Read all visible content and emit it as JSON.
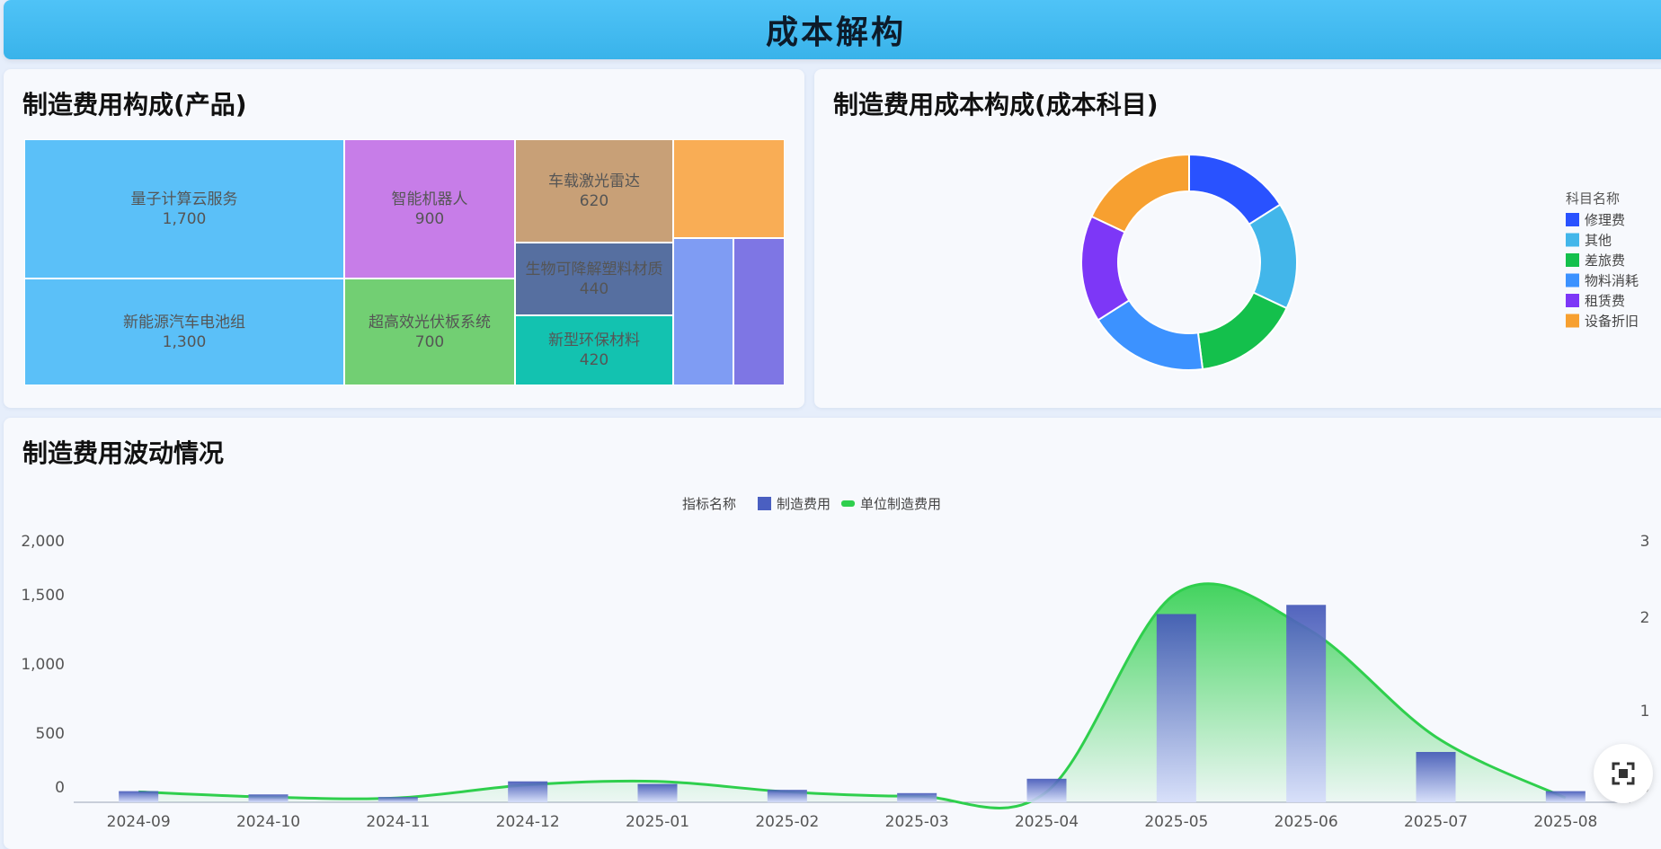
{
  "header": {
    "title": "成本解构"
  },
  "treemap_panel": {
    "title": "制造费用构成(产品)"
  },
  "donut_panel": {
    "title": "制造费用成本构成(成本科目)",
    "legend_title": "科目名称"
  },
  "trend_panel": {
    "title": "制造费用波动情况",
    "legend_title": "指标名称"
  },
  "chart_data": [
    {
      "type": "treemap",
      "title": "制造费用构成(产品)",
      "items": [
        {
          "name": "量子计算云服务",
          "value": 1700,
          "label": "1,700",
          "color": "#5bc0f8"
        },
        {
          "name": "新能源汽车电池组",
          "value": 1300,
          "label": "1,300",
          "color": "#5bc0f8"
        },
        {
          "name": "智能机器人",
          "value": 900,
          "label": "900",
          "color": "#c77de8"
        },
        {
          "name": "超高效光伏板系统",
          "value": 700,
          "label": "700",
          "color": "#72cf73"
        },
        {
          "name": "车载激光雷达",
          "value": 620,
          "label": "620",
          "color": "#c8a077"
        },
        {
          "name": "生物可降解塑料材质",
          "value": 440,
          "label": "440",
          "color": "#566fa0"
        },
        {
          "name": "新型环保材料",
          "value": 420,
          "label": "420",
          "color": "#13c2b0"
        },
        {
          "name": "",
          "value": 330,
          "label": "",
          "color": "#f9ad55"
        },
        {
          "name": "",
          "value": 260,
          "label": "",
          "color": "#7f9cf3"
        },
        {
          "name": "",
          "value": 210,
          "label": "",
          "color": "#7e76e4"
        }
      ]
    },
    {
      "type": "pie",
      "title": "制造费用成本构成(成本科目)",
      "legend_title": "科目名称",
      "legend_position": "right",
      "slices": [
        {
          "name": "修理费",
          "value": 16,
          "color": "#2952ff"
        },
        {
          "name": "其他",
          "value": 16,
          "color": "#42b6ea"
        },
        {
          "name": "差旅费",
          "value": 16,
          "color": "#14c04c"
        },
        {
          "name": "物料消耗",
          "value": 18,
          "color": "#3c92ff"
        },
        {
          "name": "租赁费",
          "value": 16,
          "color": "#7d37f7"
        },
        {
          "name": "设备折旧",
          "value": 18,
          "color": "#f7a030"
        }
      ]
    },
    {
      "type": "bar",
      "title": "制造费用波动情况",
      "legend_title": "指标名称",
      "legend_position": "top",
      "categories": [
        "2024-09",
        "2024-10",
        "2024-11",
        "2024-12",
        "2025-01",
        "2025-02",
        "2025-03",
        "2025-04",
        "2025-05",
        "2025-06",
        "2025-07",
        "2025-08"
      ],
      "series": [
        {
          "name": "制造费用",
          "type": "bar",
          "axis": "left",
          "color": "#4a5fc1",
          "values": [
            85,
            60,
            40,
            160,
            140,
            95,
            70,
            180,
            1440,
            1510,
            385,
            85
          ]
        },
        {
          "name": "单位制造费用",
          "type": "area",
          "axis": "right",
          "color": "#2fcf4d",
          "values": [
            0.12,
            0.06,
            0.05,
            0.2,
            0.24,
            0.12,
            0.07,
            0.12,
            2.4,
            2.0,
            0.75,
            0.05
          ]
        }
      ],
      "yticks_left": [
        "2,000",
        "1,500",
        "1,000",
        "500",
        "0"
      ],
      "yticks_right": [
        "3",
        "2",
        "1",
        "0"
      ],
      "ylim_left": [
        0,
        2000
      ],
      "ylim_right": [
        0,
        3
      ]
    }
  ]
}
